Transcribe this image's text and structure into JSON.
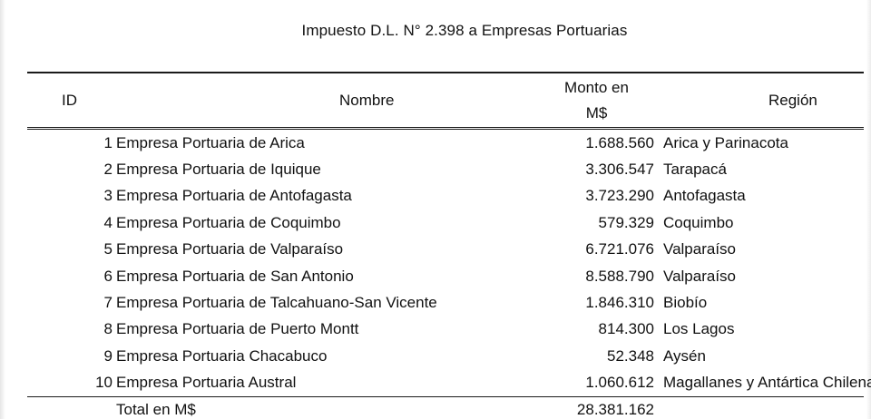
{
  "title": "Impuesto D.L. N° 2.398 a Empresas Portuarias",
  "headers": {
    "id": "ID",
    "name": "Nombre",
    "monto_line1": "Monto en",
    "monto_line2": "M$",
    "region": "Región"
  },
  "rows": [
    {
      "id": "1",
      "name": "Empresa Portuaria de Arica",
      "monto": "1.688.560",
      "region": "Arica y Parinacota"
    },
    {
      "id": "2",
      "name": "Empresa Portuaria de Iquique",
      "monto": "3.306.547",
      "region": "Tarapacá"
    },
    {
      "id": "3",
      "name": "Empresa Portuaria de Antofagasta",
      "monto": "3.723.290",
      "region": "Antofagasta"
    },
    {
      "id": "4",
      "name": "Empresa Portuaria de Coquimbo",
      "monto": "579.329",
      "region": "Coquimbo"
    },
    {
      "id": "5",
      "name": "Empresa Portuaria de Valparaíso",
      "monto": "6.721.076",
      "region": "Valparaíso"
    },
    {
      "id": "6",
      "name": "Empresa Portuaria de San Antonio",
      "monto": "8.588.790",
      "region": "Valparaíso"
    },
    {
      "id": "7",
      "name": "Empresa Portuaria de Talcahuano-San Vicente",
      "monto": "1.846.310",
      "region": "Biobío"
    },
    {
      "id": "8",
      "name": "Empresa Portuaria de Puerto Montt",
      "monto": "814.300",
      "region": "Los Lagos"
    },
    {
      "id": "9",
      "name": "Empresa Portuaria Chacabuco",
      "monto": "52.348",
      "region": "Aysén"
    },
    {
      "id": "10",
      "name": "Empresa Portuaria Austral",
      "monto": "1.060.612",
      "region": "Magallanes y Antártica Chilena"
    }
  ],
  "total": {
    "label": "Total en M$",
    "monto": "28.381.162"
  }
}
